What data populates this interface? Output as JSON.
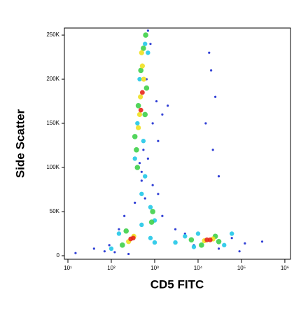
{
  "chart_data": {
    "type": "scatter",
    "x_label": "CD5 FITC",
    "y_label": "Side Scatter",
    "xlim": [
      8.3,
      1350000
    ],
    "xscale": "log",
    "xticks": [
      {
        "value": 10,
        "label": "10¹"
      },
      {
        "value": 100,
        "label": "10²"
      },
      {
        "value": 1000,
        "label": "10³"
      },
      {
        "value": 10000,
        "label": "10⁴"
      },
      {
        "value": 100000,
        "label": "10⁵"
      },
      {
        "value": 1000000,
        "label": "10⁶"
      }
    ],
    "ylim": [
      -4000,
      258000
    ],
    "yticks": [
      0,
      {
        "value": 50000,
        "label": "50K"
      },
      {
        "value": 100000,
        "label": "100K"
      },
      {
        "value": 150000,
        "label": "150K"
      },
      {
        "value": 200000,
        "label": "200K"
      },
      {
        "value": 250000,
        "label": "250K"
      }
    ],
    "series": [
      {
        "color": "#1a2ad0",
        "x": [
          15,
          40,
          70,
          90,
          120,
          150,
          200,
          250,
          350,
          500,
          700,
          900,
          1200,
          1500,
          2000,
          3000,
          5000,
          8000,
          30000,
          60000,
          90000,
          120000,
          300000,
          700,
          800,
          650,
          550,
          450,
          900,
          1100,
          1200,
          1500,
          18000,
          20000,
          25000,
          15000,
          22000,
          30000,
          600,
          500
        ],
        "values": [
          3000,
          8000,
          5000,
          12000,
          4000,
          30000,
          45000,
          2000,
          60000,
          95000,
          110000,
          80000,
          130000,
          160000,
          170000,
          30000,
          25000,
          12000,
          8000,
          20000,
          5000,
          14000,
          16000,
          255000,
          240000,
          200000,
          120000,
          105000,
          150000,
          175000,
          70000,
          45000,
          230000,
          210000,
          180000,
          150000,
          120000,
          90000,
          65000,
          85000
        ]
      },
      {
        "color": "#22c8e8",
        "x": [
          100,
          150,
          500,
          800,
          350,
          400,
          450,
          600,
          700,
          550,
          800,
          1000,
          1000,
          3000,
          5000,
          8000,
          40000,
          60000,
          10000,
          600,
          500
        ],
        "values": [
          8000,
          25000,
          35000,
          20000,
          110000,
          150000,
          200000,
          240000,
          230000,
          130000,
          55000,
          40000,
          15000,
          15000,
          22000,
          10000,
          12000,
          25000,
          25000,
          90000,
          70000
        ]
      },
      {
        "color": "#3fd04a",
        "x": [
          180,
          220,
          380,
          420,
          480,
          550,
          620,
          650,
          350,
          900,
          850,
          12000,
          25000,
          30000,
          7000,
          400,
          600
        ],
        "values": [
          12000,
          28000,
          120000,
          170000,
          210000,
          235000,
          250000,
          190000,
          135000,
          50000,
          38000,
          12000,
          22000,
          16000,
          18000,
          100000,
          160000
        ]
      },
      {
        "color": "#f0e020",
        "x": [
          250,
          330,
          420,
          470,
          520,
          560,
          450,
          14000,
          22000,
          500
        ],
        "values": [
          16000,
          22000,
          145000,
          180000,
          215000,
          200000,
          160000,
          17000,
          19000,
          230000
        ]
      },
      {
        "color": "#e8261b",
        "x": [
          280,
          320,
          480,
          520,
          16000,
          19000
        ],
        "values": [
          19000,
          20000,
          165000,
          185000,
          18000,
          18000
        ]
      }
    ]
  }
}
